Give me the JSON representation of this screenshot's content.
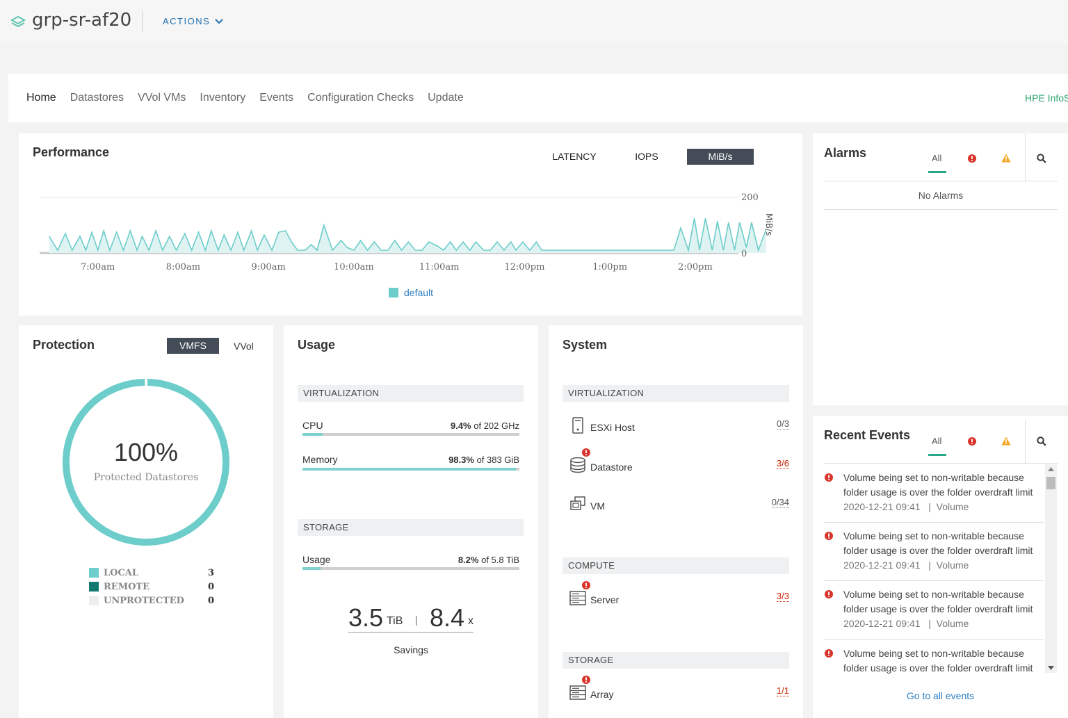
{
  "header": {
    "title": "grp-sr-af20",
    "actions_label": "ACTIONS"
  },
  "nav": {
    "items": [
      "Home",
      "Datastores",
      "VVol VMs",
      "Inventory",
      "Events",
      "Configuration Checks",
      "Update"
    ],
    "active": "Home",
    "right_link": "HPE InfoS"
  },
  "performance": {
    "title": "Performance",
    "tabs": [
      "LATENCY",
      "IOPS",
      "MiB/s"
    ],
    "active_tab": "MiB/s"
  },
  "chart_data": {
    "type": "area",
    "title": "",
    "ylabel": "MiB/s",
    "ylim": [
      0,
      200
    ],
    "y_ticks": [
      "200",
      "0"
    ],
    "x_ticks": [
      "7:00am",
      "8:00am",
      "9:00am",
      "10:00am",
      "11:00am",
      "12:00pm",
      "1:00pm",
      "2:00pm"
    ],
    "x_hours": [
      6.4,
      14.4
    ],
    "color": "#6ccdca",
    "series": [
      {
        "name": "default",
        "values": [
          [
            6.43,
            60
          ],
          [
            6.53,
            10
          ],
          [
            6.62,
            70
          ],
          [
            6.7,
            10
          ],
          [
            6.79,
            60
          ],
          [
            6.86,
            10
          ],
          [
            6.93,
            75
          ],
          [
            7.0,
            10
          ],
          [
            7.07,
            80
          ],
          [
            7.14,
            10
          ],
          [
            7.22,
            75
          ],
          [
            7.3,
            10
          ],
          [
            7.38,
            80
          ],
          [
            7.46,
            10
          ],
          [
            7.52,
            60
          ],
          [
            7.6,
            10
          ],
          [
            7.68,
            80
          ],
          [
            7.76,
            10
          ],
          [
            7.84,
            60
          ],
          [
            7.92,
            10
          ],
          [
            8.02,
            70
          ],
          [
            8.1,
            10
          ],
          [
            8.18,
            75
          ],
          [
            8.26,
            10
          ],
          [
            8.33,
            80
          ],
          [
            8.41,
            10
          ],
          [
            8.48,
            65
          ],
          [
            8.56,
            10
          ],
          [
            8.64,
            75
          ],
          [
            8.71,
            10
          ],
          [
            8.8,
            80
          ],
          [
            8.87,
            10
          ],
          [
            8.95,
            65
          ],
          [
            9.04,
            10
          ],
          [
            9.12,
            75
          ],
          [
            9.2,
            80
          ],
          [
            9.27,
            40
          ],
          [
            9.34,
            10
          ],
          [
            9.43,
            10
          ],
          [
            9.5,
            30
          ],
          [
            9.57,
            10
          ],
          [
            9.65,
            100
          ],
          [
            9.75,
            10
          ],
          [
            9.85,
            45
          ],
          [
            9.92,
            20
          ],
          [
            10.0,
            10
          ],
          [
            10.08,
            45
          ],
          [
            10.16,
            10
          ],
          [
            10.24,
            40
          ],
          [
            10.32,
            10
          ],
          [
            10.4,
            10
          ],
          [
            10.48,
            45
          ],
          [
            10.56,
            10
          ],
          [
            10.64,
            40
          ],
          [
            10.72,
            10
          ],
          [
            10.8,
            10
          ],
          [
            10.88,
            40
          ],
          [
            10.98,
            25
          ],
          [
            11.05,
            10
          ],
          [
            11.13,
            40
          ],
          [
            11.2,
            10
          ],
          [
            11.28,
            40
          ],
          [
            11.36,
            10
          ],
          [
            11.43,
            40
          ],
          [
            11.52,
            10
          ],
          [
            11.6,
            10
          ],
          [
            11.68,
            40
          ],
          [
            11.76,
            10
          ],
          [
            11.84,
            40
          ],
          [
            11.9,
            10
          ],
          [
            11.98,
            40
          ],
          [
            12.06,
            10
          ],
          [
            12.14,
            40
          ],
          [
            12.2,
            10
          ],
          [
            12.3,
            10
          ],
          [
            12.9,
            10
          ],
          [
            13.4,
            10
          ],
          [
            13.75,
            10
          ],
          [
            13.83,
            90
          ],
          [
            13.92,
            10
          ],
          [
            13.99,
            125
          ],
          [
            14.05,
            10
          ],
          [
            14.12,
            125
          ],
          [
            14.2,
            10
          ],
          [
            14.26,
            115
          ],
          [
            14.33,
            10
          ],
          [
            14.39,
            110
          ],
          [
            14.46,
            10
          ],
          [
            14.52,
            110
          ],
          [
            14.6,
            20
          ],
          [
            14.66,
            110
          ],
          [
            14.74,
            10
          ],
          [
            14.83,
            85
          ]
        ]
      }
    ]
  },
  "alarms": {
    "title": "Alarms",
    "tab_all": "All",
    "empty_text": "No Alarms"
  },
  "protection": {
    "title": "Protection",
    "btn_vmfs": "VMFS",
    "btn_vvol": "VVol",
    "percent": "100%",
    "percent_value": 1.0,
    "percent_label": "Protected Datastores",
    "legend": [
      {
        "label": "LOCAL",
        "count": "3",
        "color": "#6ccdca"
      },
      {
        "label": "REMOTE",
        "count": "0",
        "color": "#137970"
      },
      {
        "label": "UNPROTECTED",
        "count": "0",
        "color": "#eeeeee"
      }
    ]
  },
  "usage": {
    "title": "Usage",
    "virt_header": "VIRTUALIZATION",
    "cpu_label": "CPU",
    "cpu_pct": "9.4%",
    "cpu_of": " of 202 GHz",
    "cpu_fraction": 0.094,
    "mem_label": "Memory",
    "mem_pct": "98.3%",
    "mem_of": " of 383 GiB",
    "mem_fraction": 0.983,
    "storage_header": "STORAGE",
    "usage_label": "Usage",
    "usage_pct": "8.2%",
    "usage_of": " of 5.8 TiB",
    "usage_fraction": 0.082,
    "savings_capacity": "3.5",
    "savings_capacity_unit": "TiB",
    "savings_ratio": "8.4",
    "savings_ratio_unit": "x",
    "savings_label": "Savings"
  },
  "system": {
    "title": "System",
    "virt_header": "VIRTUALIZATION",
    "esxi_label": "ESXi Host",
    "esxi_count": "0/3",
    "datastore_label": "Datastore",
    "datastore_count": "3/6",
    "vm_label": "VM",
    "vm_count": "0/34",
    "compute_header": "COMPUTE",
    "server_label": "Server",
    "server_count": "3/3",
    "storage_header": "STORAGE",
    "array_label": "Array",
    "array_count": "1/1"
  },
  "events": {
    "title": "Recent Events",
    "tab_all": "All",
    "items": [
      {
        "line1": "Volume being set to non-writable because",
        "line2": "folder usage is over the folder overdraft limit",
        "time": "2020-12-21 09:41",
        "type": "Volume"
      },
      {
        "line1": "Volume being set to non-writable because",
        "line2": "folder usage is over the folder overdraft limit",
        "time": "2020-12-21 09:41",
        "type": "Volume"
      },
      {
        "line1": "Volume being set to non-writable because",
        "line2": "folder usage is over the folder overdraft limit",
        "time": "2020-12-21 09:41",
        "type": "Volume"
      },
      {
        "line1": "Volume being set to non-writable because",
        "line2": "folder usage is over the folder overdraft limit"
      }
    ],
    "meta_sep": "|",
    "go_all": "Go to all events"
  }
}
